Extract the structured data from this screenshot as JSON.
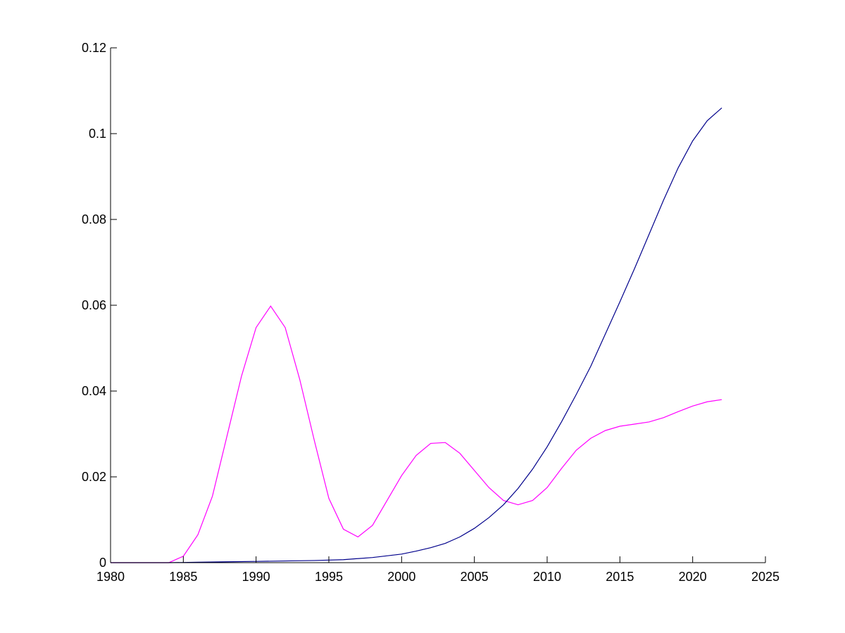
{
  "chart_data": {
    "type": "line",
    "title": "",
    "xlabel": "",
    "ylabel": "",
    "xlim": [
      1980,
      2025
    ],
    "ylim": [
      0,
      0.12
    ],
    "xticks": [
      1980,
      1985,
      1990,
      1995,
      2000,
      2005,
      2010,
      2015,
      2020,
      2025
    ],
    "yticks": [
      0,
      0.02,
      0.04,
      0.06,
      0.08,
      0.1,
      0.12
    ],
    "xtick_labels": [
      "1980",
      "1985",
      "1990",
      "1995",
      "2000",
      "2005",
      "2010",
      "2015",
      "2020",
      "2025"
    ],
    "ytick_labels": [
      "0",
      "0.02",
      "0.04",
      "0.06",
      "0.08",
      "0.1",
      "0.12"
    ],
    "grid": false,
    "series": [
      {
        "color": "#ff00ff",
        "x": [
          1980,
          1981,
          1982,
          1983,
          1984,
          1985,
          1986,
          1987,
          1988,
          1989,
          1990,
          1991,
          1992,
          1993,
          1994,
          1995,
          1996,
          1997,
          1998,
          1999,
          2000,
          2001,
          2002,
          2003,
          2004,
          2005,
          2006,
          2007,
          2008,
          2009,
          2010,
          2011,
          2012,
          2013,
          2014,
          2015,
          2016,
          2017,
          2018,
          2019,
          2020,
          2021,
          2022
        ],
        "y": [
          0,
          0,
          0,
          0,
          0,
          0.0015,
          0.0065,
          0.0155,
          0.0295,
          0.0435,
          0.0548,
          0.0598,
          0.0548,
          0.0427,
          0.0285,
          0.015,
          0.0078,
          0.006,
          0.0087,
          0.0145,
          0.0203,
          0.025,
          0.0278,
          0.028,
          0.0255,
          0.0215,
          0.0175,
          0.0145,
          0.0135,
          0.0145,
          0.0175,
          0.022,
          0.0262,
          0.029,
          0.0308,
          0.0318,
          0.0323,
          0.0328,
          0.0338,
          0.0352,
          0.0365,
          0.0375,
          0.038
        ]
      },
      {
        "color": "#00008b",
        "x": [
          1980,
          1982,
          1984,
          1986,
          1988,
          1990,
          1992,
          1994,
          1996,
          1998,
          2000,
          2001,
          2002,
          2003,
          2004,
          2005,
          2006,
          2007,
          2008,
          2009,
          2010,
          2011,
          2012,
          2013,
          2014,
          2015,
          2016,
          2017,
          2018,
          2019,
          2020,
          2021,
          2022
        ],
        "y": [
          0,
          0,
          0,
          0.0001,
          0.0002,
          0.0003,
          0.0004,
          0.0005,
          0.0007,
          0.0012,
          0.002,
          0.0027,
          0.0035,
          0.0045,
          0.006,
          0.008,
          0.0105,
          0.0135,
          0.0173,
          0.0218,
          0.027,
          0.0329,
          0.0392,
          0.0458,
          0.0533,
          0.0608,
          0.0685,
          0.0765,
          0.0845,
          0.092,
          0.0983,
          0.103,
          0.106
        ]
      }
    ]
  }
}
